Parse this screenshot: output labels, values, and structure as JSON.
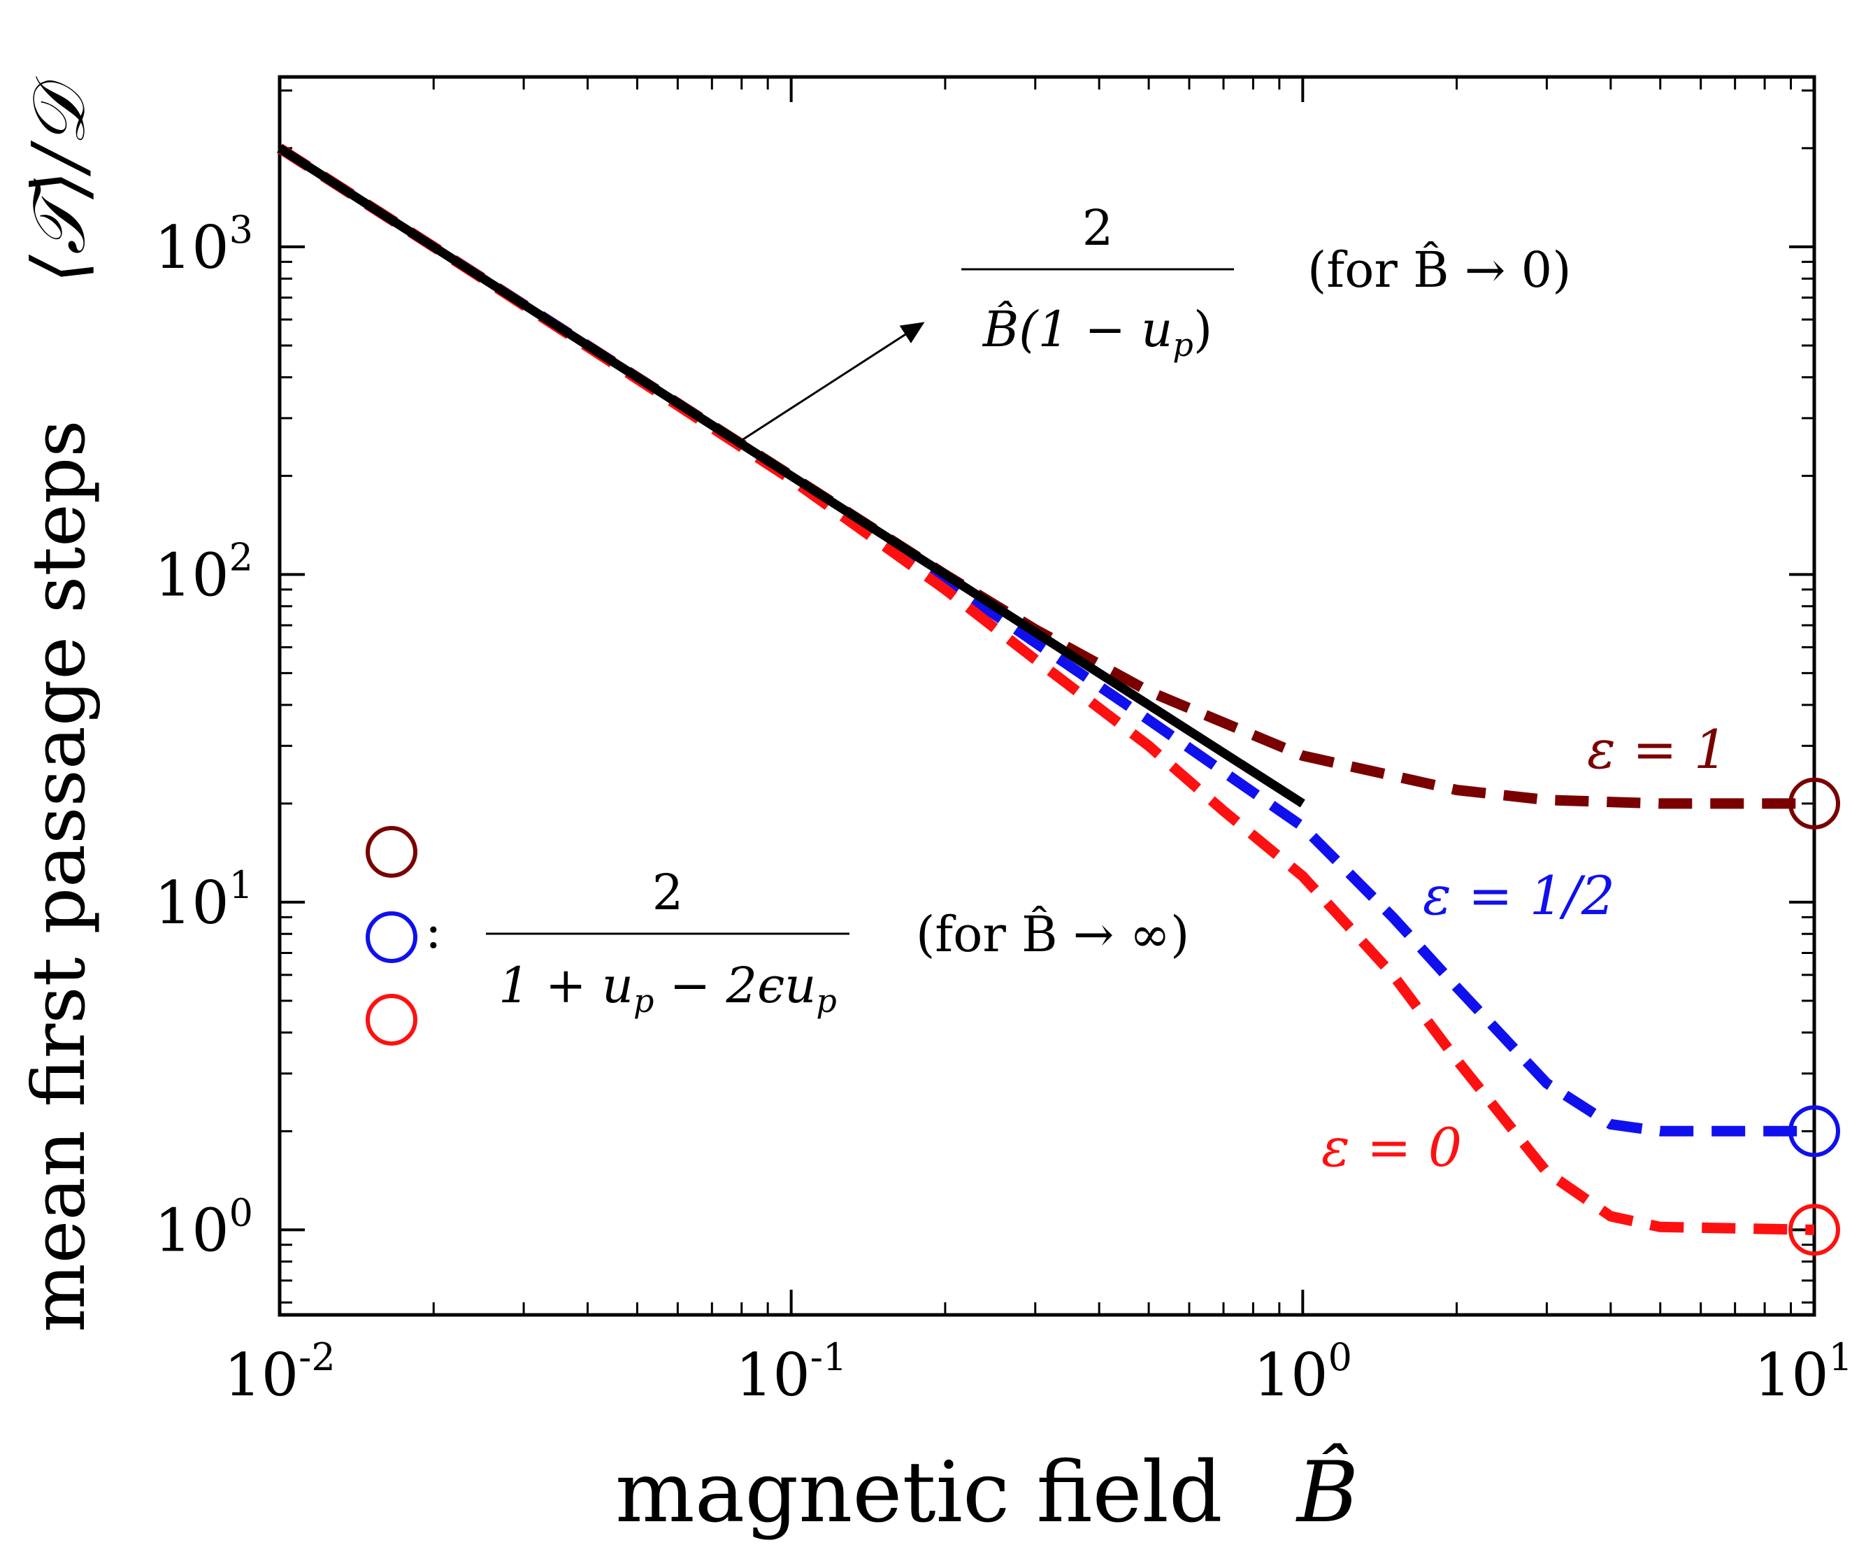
{
  "chart_data": {
    "type": "line",
    "title": "",
    "xlabel": "magnetic field",
    "xlabel_symbol": "B̂",
    "ylabel": "mean first passage steps",
    "ylabel_symbol": "⟨𝒯⟩/𝒟",
    "x_scale": "log",
    "y_scale": "log",
    "xlim": [
      0.01,
      10
    ],
    "ylim": [
      0.55,
      3300
    ],
    "x_ticks": [
      {
        "value": 0.01,
        "base": "10",
        "exp": "-2"
      },
      {
        "value": 0.1,
        "base": "10",
        "exp": "-1"
      },
      {
        "value": 1,
        "base": "10",
        "exp": "0"
      },
      {
        "value": 10,
        "base": "10",
        "exp": "1"
      }
    ],
    "y_ticks": [
      {
        "value": 1,
        "base": "10",
        "exp": "0"
      },
      {
        "value": 10,
        "base": "10",
        "exp": "1"
      },
      {
        "value": 100,
        "base": "10",
        "exp": "2"
      },
      {
        "value": 1000,
        "base": "10",
        "exp": "3"
      }
    ],
    "grid": false,
    "series": [
      {
        "name": "ε = 1",
        "color": "#7a0000",
        "style": "dashed",
        "x": [
          0.01,
          0.02,
          0.05,
          0.1,
          0.2,
          0.3,
          0.5,
          1,
          2,
          3,
          5,
          10
        ],
        "y": [
          2000,
          1000,
          400,
          200,
          100,
          68,
          44,
          28,
          22,
          20.5,
          20,
          20
        ]
      },
      {
        "name": "ε = 1/2",
        "color": "#1010ee",
        "style": "dashed",
        "x": [
          0.01,
          0.02,
          0.05,
          0.1,
          0.2,
          0.3,
          0.5,
          0.7,
          1,
          1.5,
          2,
          3,
          4,
          5,
          10
        ],
        "y": [
          2000,
          1000,
          398,
          198,
          96,
          62,
          36,
          25,
          17,
          9,
          5.5,
          2.8,
          2.1,
          2.0,
          2.0
        ]
      },
      {
        "name": "ε = 0",
        "color": "#ff1010",
        "style": "dashed",
        "x": [
          0.01,
          0.02,
          0.05,
          0.1,
          0.2,
          0.3,
          0.5,
          0.7,
          1,
          1.5,
          2,
          3,
          4,
          5,
          10
        ],
        "y": [
          2000,
          1000,
          395,
          195,
          90,
          55,
          30,
          19,
          12,
          6,
          3.3,
          1.5,
          1.1,
          1.02,
          1.0
        ]
      },
      {
        "name": "2/(B̂(1−u_p))",
        "color": "#000000",
        "style": "solid",
        "x": [
          0.01,
          1
        ],
        "y": [
          2000,
          20
        ]
      }
    ],
    "markers": [
      {
        "x": 10,
        "y": 20,
        "color": "#7a0000"
      },
      {
        "x": 10,
        "y": 2,
        "color": "#1010ee"
      },
      {
        "x": 10,
        "y": 1,
        "color": "#ff1010"
      }
    ],
    "series_labels": [
      {
        "text": "ε = 1",
        "color": "#7a0000"
      },
      {
        "text": "ε = 1/2",
        "color": "#1010ee"
      },
      {
        "text": "ε = 0",
        "color": "#ff1010"
      }
    ],
    "annotations": {
      "small_b": {
        "numerator": "2",
        "denominator": "B̂(1 − u",
        "denominator_sub": "p",
        "denominator_close": ")",
        "condition": "(for B̂ → 0)"
      },
      "large_b": {
        "colon": ":",
        "numerator": "2",
        "denominator": "1 + u",
        "denominator_sub": "p",
        "denominator_mid": " − 2ϵu",
        "denominator_sub2": "p",
        "condition": "(for B̂ → ∞)"
      }
    }
  }
}
